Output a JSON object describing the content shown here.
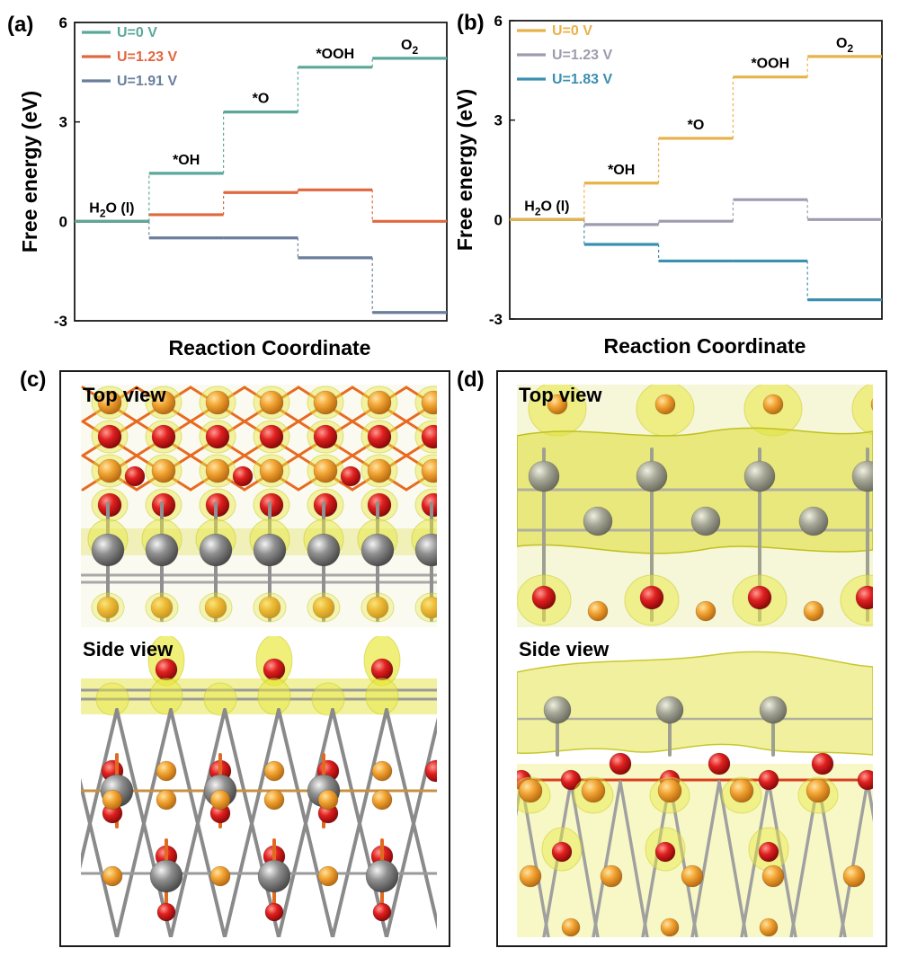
{
  "chart_data": [
    {
      "panel": "(a)",
      "type": "line",
      "xlabel": "Reaction Coordinate",
      "ylabel": "Free energy (eV)",
      "ylim": [
        -3,
        6
      ],
      "yticks": [
        "6",
        "3",
        "0",
        "-3"
      ],
      "steps": [
        {
          "label": "H2O (l)",
          "main": "H",
          "sub": "2",
          "tail": "O (l)"
        },
        {
          "label": "*OH",
          "main": "*OH",
          "sub": "",
          "tail": ""
        },
        {
          "label": "*O",
          "main": "*O",
          "sub": "",
          "tail": ""
        },
        {
          "label": "*OOH",
          "main": "*OOH",
          "sub": "",
          "tail": ""
        },
        {
          "label": "O2",
          "main": "O",
          "sub": "2",
          "tail": ""
        }
      ],
      "series": [
        {
          "name": "U=0 V",
          "color": "#5ba89a",
          "values": [
            0,
            1.45,
            3.3,
            4.65,
            4.92
          ]
        },
        {
          "name": "U=1.23 V",
          "color": "#e0673f",
          "values": [
            0,
            0.2,
            0.87,
            0.95,
            0
          ]
        },
        {
          "name": "U=1.91 V",
          "color": "#6a7e9c",
          "values": [
            0,
            -0.5,
            -0.5,
            -1.1,
            -2.75
          ]
        }
      ]
    },
    {
      "panel": "(b)",
      "type": "line",
      "xlabel": "Reaction Coordinate",
      "ylabel": "Free energy (eV)",
      "ylim": [
        -3,
        6
      ],
      "yticks": [
        "6",
        "3",
        "0",
        "-3"
      ],
      "steps": [
        {
          "label": "H2O (l)",
          "main": "H",
          "sub": "2",
          "tail": "O (l)"
        },
        {
          "label": "*OH",
          "main": "*OH",
          "sub": "",
          "tail": ""
        },
        {
          "label": "*O",
          "main": "*O",
          "sub": "",
          "tail": ""
        },
        {
          "label": "*OOH",
          "main": "*OOH",
          "sub": "",
          "tail": ""
        },
        {
          "label": "O2",
          "main": "O",
          "sub": "2",
          "tail": ""
        }
      ],
      "series": [
        {
          "name": "U=0 V",
          "color": "#e8b24a",
          "values": [
            0,
            1.1,
            2.45,
            4.3,
            4.92
          ]
        },
        {
          "name": "U=1.23 V",
          "color": "#9d9cae",
          "values": [
            0,
            -0.15,
            -0.05,
            0.6,
            0
          ]
        },
        {
          "name": "U=1.83 V",
          "color": "#3b8fb0",
          "values": [
            0,
            -0.75,
            -1.25,
            -1.25,
            -2.42
          ]
        }
      ]
    }
  ],
  "figures": {
    "c": {
      "letter": "(c)",
      "top_label": "Top view",
      "side_label": "Side view"
    },
    "d": {
      "letter": "(d)",
      "top_label": "Top view",
      "side_label": "Side view"
    }
  }
}
